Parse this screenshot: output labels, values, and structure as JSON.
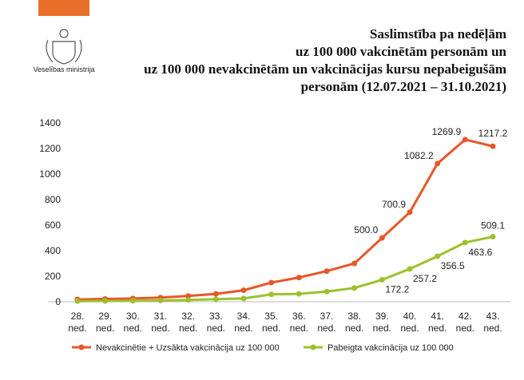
{
  "header": {
    "logo_text": "Veselības ministrija"
  },
  "chart_data": {
    "type": "line",
    "title_lines": [
      "Saslimstība pa nedēļām",
      "uz 100 000 vakcinētām personām un",
      "uz 100 000 nevakcinētām un vakcinācijas kursu nepabeigušām",
      "personām (12.07.2021 – 31.10.2021)"
    ],
    "categories": [
      "28. ned.",
      "29. ned.",
      "30. ned.",
      "31. ned.",
      "32. ned.",
      "33. ned.",
      "34. ned.",
      "35. ned.",
      "36. ned.",
      "37. ned.",
      "38. ned.",
      "39. ned.",
      "40. ned.",
      "41. ned.",
      "42. ned.",
      "43. ned."
    ],
    "series": [
      {
        "name": "Nevakcinētie + Uzsākta vakcinācija uz 100 000",
        "color": "#e8572a",
        "values": [
          18,
          22,
          26,
          33,
          45,
          62,
          90,
          150,
          190,
          240,
          300,
          500.0,
          700.9,
          1082.2,
          1269.9,
          1217.2
        ],
        "value_labels": [
          null,
          null,
          null,
          null,
          null,
          null,
          null,
          null,
          null,
          null,
          null,
          "500.0",
          "700.9",
          "1082.2",
          "1269.9",
          "1217.2"
        ]
      },
      {
        "name": "Pabeigta vakcinācija uz 100 000",
        "color": "#9dc12c",
        "values": [
          5,
          6,
          8,
          10,
          14,
          20,
          26,
          58,
          62,
          80,
          108,
          172.2,
          257.2,
          356.5,
          463.6,
          509.1
        ],
        "value_labels": [
          null,
          null,
          null,
          null,
          null,
          null,
          null,
          null,
          null,
          null,
          null,
          "172.2",
          "257.2",
          "356.5",
          "463.6",
          "509.1"
        ]
      }
    ],
    "ylim": [
      0,
      1400
    ],
    "yticks": [
      0,
      200,
      400,
      600,
      800,
      1000,
      1200,
      1400
    ],
    "grid": false
  }
}
